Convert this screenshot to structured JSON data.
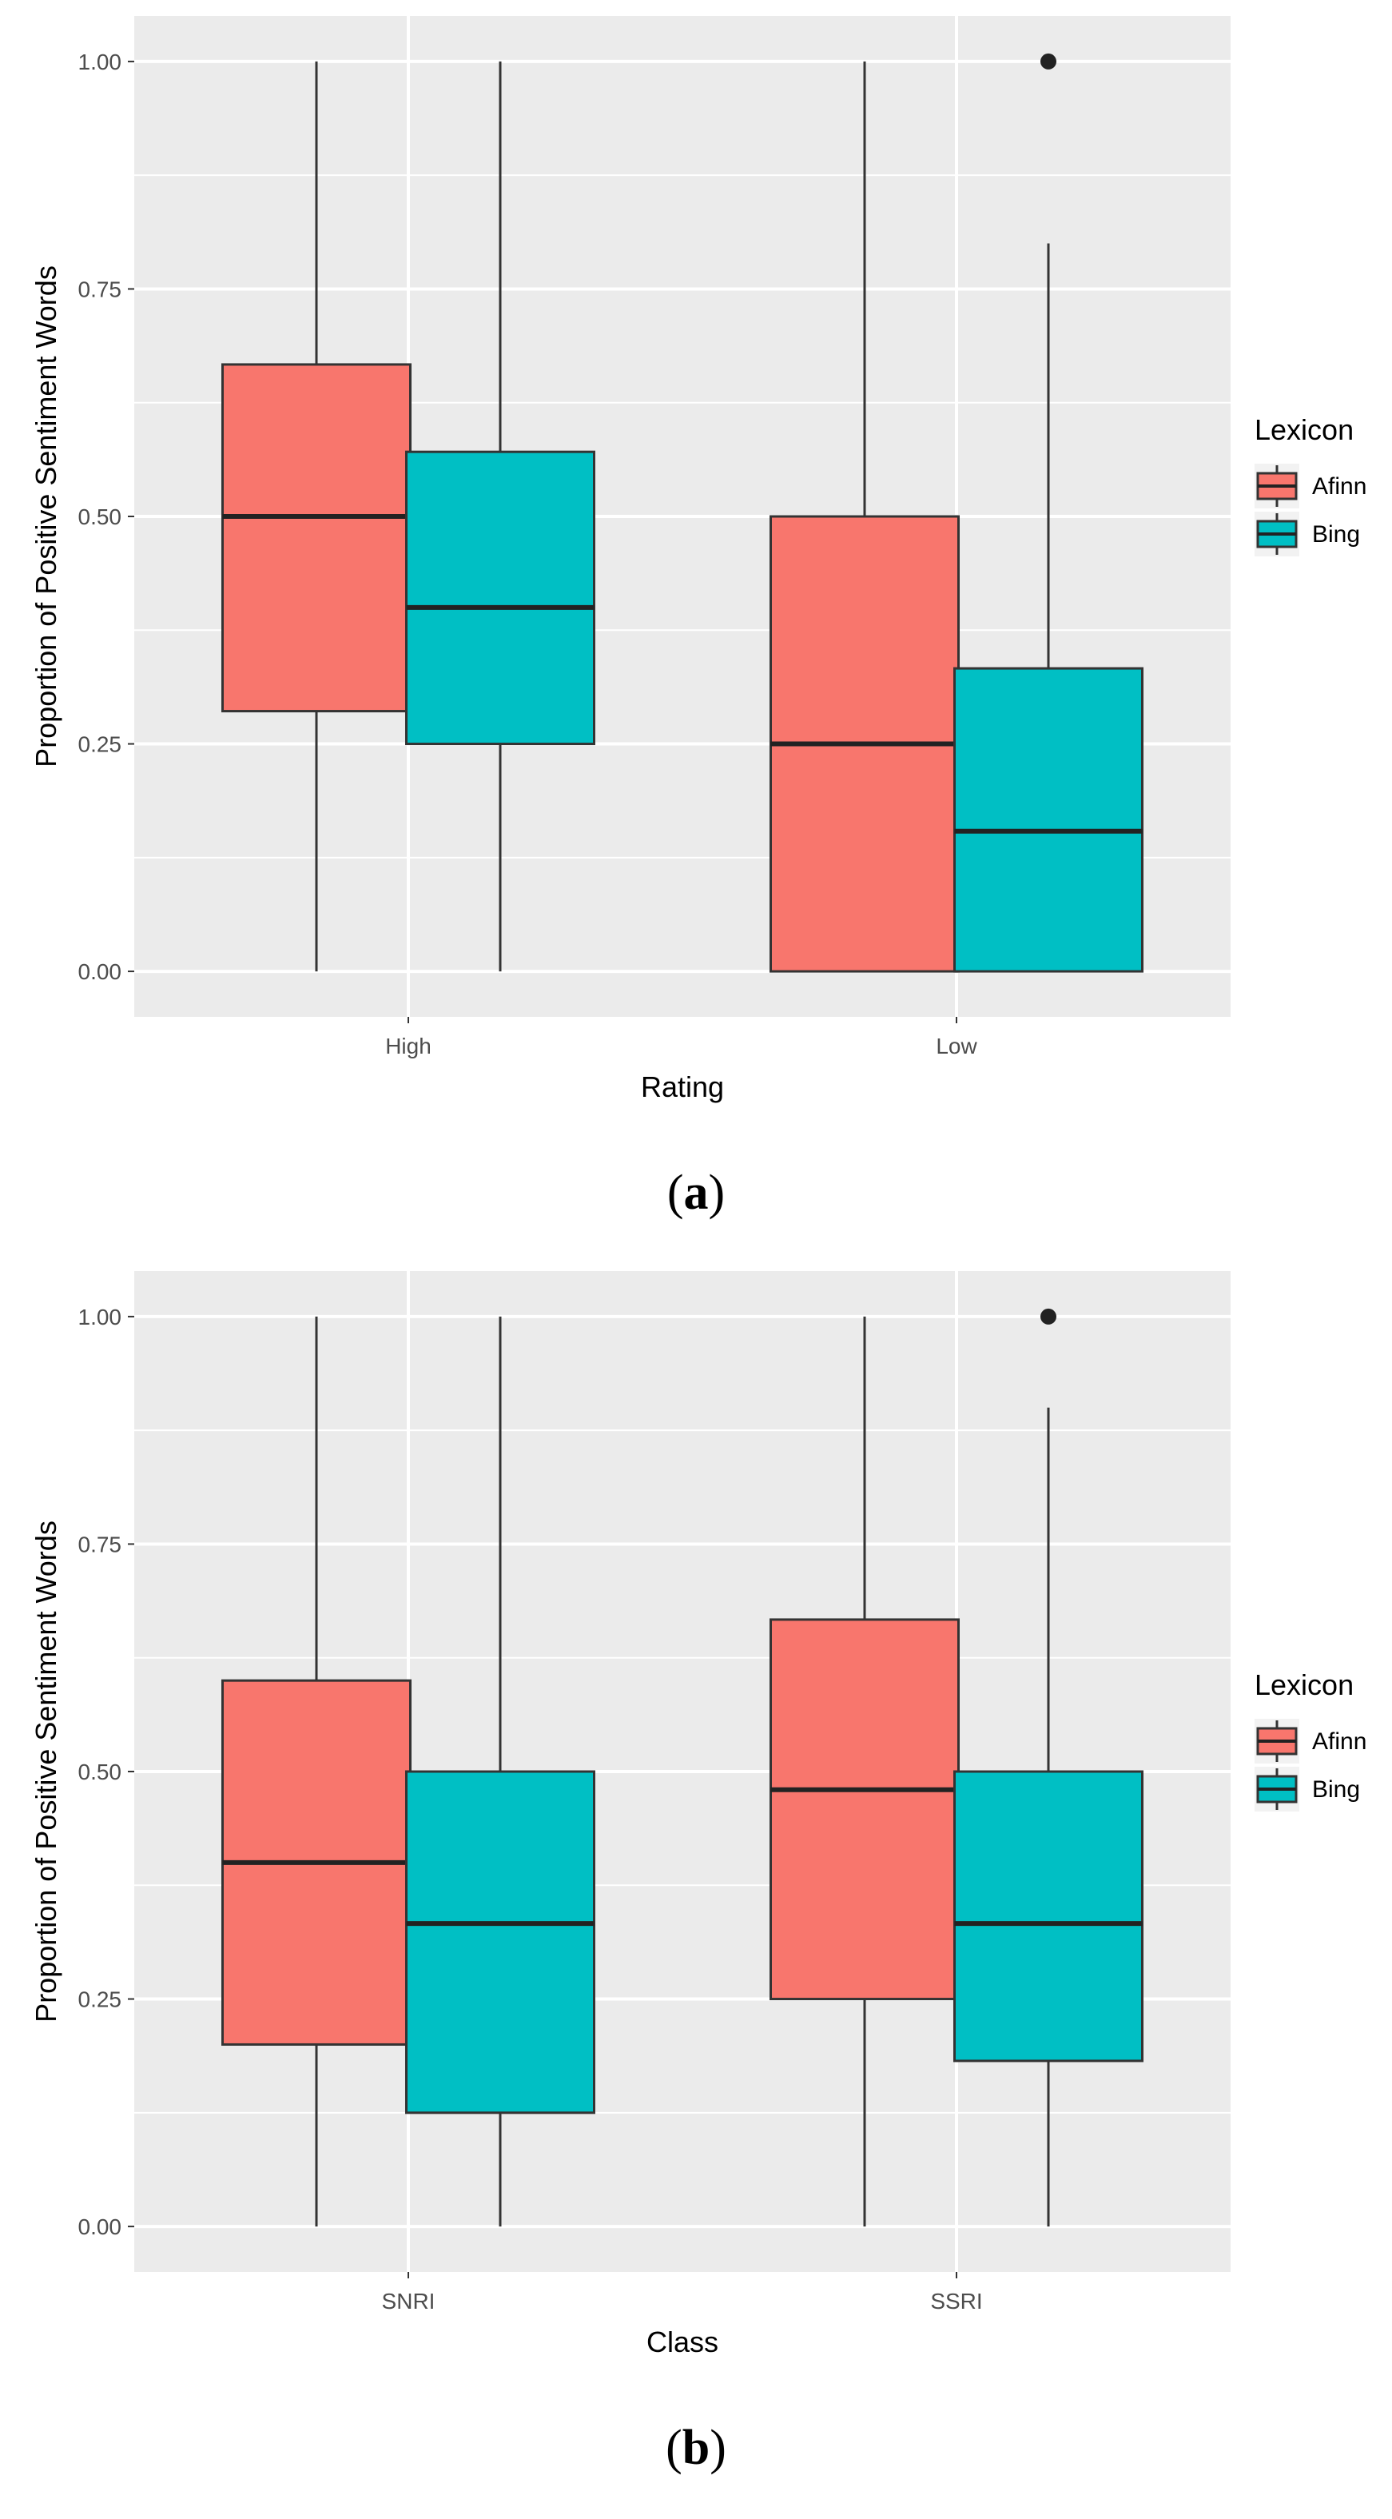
{
  "chart_data": [
    {
      "type": "boxplot",
      "panel_label": "a",
      "xlabel": "Rating",
      "ylabel": "Proportion of Positive Sentiment Words",
      "ylim": [
        -0.05,
        1.05
      ],
      "yticks": [
        0.0,
        0.25,
        0.5,
        0.75,
        1.0
      ],
      "ytick_labels": [
        "0.00",
        "0.25",
        "0.50",
        "0.75",
        "1.00"
      ],
      "categories": [
        "High",
        "Low"
      ],
      "grid": true,
      "legend": {
        "title": "Lexicon",
        "position": "right",
        "entries": [
          "Afinn",
          "Bing"
        ]
      },
      "series": [
        {
          "name": "Afinn",
          "color": "#F8766D",
          "boxes": [
            {
              "category": "High",
              "min": 0.0,
              "q1": 0.286,
              "median": 0.5,
              "q3": 0.667,
              "max": 1.0,
              "outliers": []
            },
            {
              "category": "Low",
              "min": 0.0,
              "q1": 0.0,
              "median": 0.25,
              "q3": 0.5,
              "max": 1.0,
              "outliers": []
            }
          ]
        },
        {
          "name": "Bing",
          "color": "#00BFC4",
          "boxes": [
            {
              "category": "High",
              "min": 0.0,
              "q1": 0.25,
              "median": 0.4,
              "q3": 0.571,
              "max": 1.0,
              "outliers": []
            },
            {
              "category": "Low",
              "min": 0.0,
              "q1": 0.0,
              "median": 0.154,
              "q3": 0.333,
              "max": 0.8,
              "outliers": [
                1.0
              ]
            }
          ]
        }
      ]
    },
    {
      "type": "boxplot",
      "panel_label": "b",
      "xlabel": "Class",
      "ylabel": "Proportion of Positive Sentiment Words",
      "ylim": [
        -0.05,
        1.05
      ],
      "yticks": [
        0.0,
        0.25,
        0.5,
        0.75,
        1.0
      ],
      "ytick_labels": [
        "0.00",
        "0.25",
        "0.50",
        "0.75",
        "1.00"
      ],
      "categories": [
        "SNRI",
        "SSRI"
      ],
      "grid": true,
      "legend": {
        "title": "Lexicon",
        "position": "right",
        "entries": [
          "Afinn",
          "Bing"
        ]
      },
      "series": [
        {
          "name": "Afinn",
          "color": "#F8766D",
          "boxes": [
            {
              "category": "SNRI",
              "min": 0.0,
              "q1": 0.2,
              "median": 0.4,
              "q3": 0.6,
              "max": 1.0,
              "outliers": []
            },
            {
              "category": "SSRI",
              "min": 0.0,
              "q1": 0.25,
              "median": 0.48,
              "q3": 0.667,
              "max": 1.0,
              "outliers": []
            }
          ]
        },
        {
          "name": "Bing",
          "color": "#00BFC4",
          "boxes": [
            {
              "category": "SNRI",
              "min": 0.0,
              "q1": 0.125,
              "median": 0.333,
              "q3": 0.5,
              "max": 1.0,
              "outliers": []
            },
            {
              "category": "SSRI",
              "min": 0.0,
              "q1": 0.182,
              "median": 0.333,
              "q3": 0.5,
              "max": 0.9,
              "outliers": [
                1.0
              ]
            }
          ]
        }
      ]
    }
  ]
}
